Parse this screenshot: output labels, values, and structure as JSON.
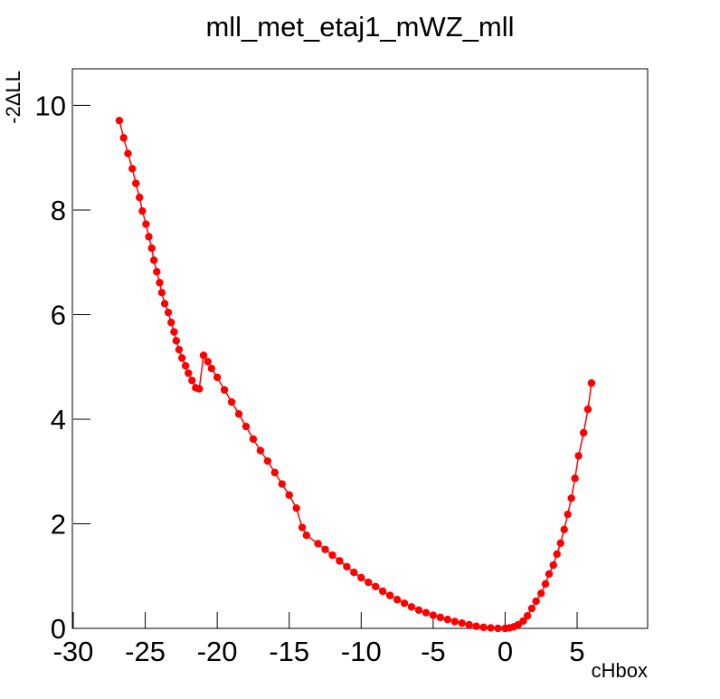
{
  "chart_data": {
    "type": "line",
    "title": "mll_met_etaj1_mWZ_mll",
    "x_label": "cHbox",
    "y_label": "-2ΔLL",
    "x": [
      -26.8,
      -26.5,
      -26.2,
      -25.9,
      -25.65,
      -25.4,
      -25.2,
      -24.95,
      -24.75,
      -24.55,
      -24.4,
      -24.2,
      -24.0,
      -23.85,
      -23.65,
      -23.4,
      -23.2,
      -23.0,
      -22.85,
      -22.65,
      -22.45,
      -22.2,
      -22.0,
      -21.75,
      -21.5,
      -21.25,
      -20.95,
      -20.65,
      -20.4,
      -20.0,
      -19.5,
      -19.0,
      -18.5,
      -18.0,
      -17.5,
      -17.0,
      -16.5,
      -16.0,
      -15.5,
      -15.0,
      -14.5,
      -14.1,
      -13.8,
      -13.0,
      -12.5,
      -12.0,
      -11.5,
      -11.0,
      -10.5,
      -10.0,
      -9.5,
      -9.0,
      -8.5,
      -8.0,
      -7.5,
      -7.0,
      -6.5,
      -6.0,
      -5.5,
      -5.0,
      -4.5,
      -4.0,
      -3.5,
      -3.0,
      -2.5,
      -2.0,
      -1.5,
      -1.0,
      -0.5,
      0.0,
      0.3,
      0.6,
      0.9,
      1.25,
      1.55,
      1.85,
      2.15,
      2.5,
      2.8,
      3.05,
      3.35,
      3.6,
      3.85,
      4.1,
      4.35,
      4.6,
      4.85,
      5.1,
      5.45,
      5.75,
      6.0
    ],
    "series": [
      {
        "name": "-2ΔLL",
        "color": "#ff0000",
        "values": [
          9.71,
          9.38,
          9.08,
          8.79,
          8.51,
          8.24,
          7.98,
          7.73,
          7.49,
          7.27,
          7.04,
          6.82,
          6.61,
          6.42,
          6.21,
          6.04,
          5.85,
          5.67,
          5.5,
          5.33,
          5.17,
          5.02,
          4.88,
          4.74,
          4.6,
          4.58,
          5.22,
          5.1,
          4.97,
          4.8,
          4.56,
          4.33,
          4.1,
          3.86,
          3.62,
          3.4,
          3.2,
          2.98,
          2.76,
          2.55,
          2.3,
          1.93,
          1.78,
          1.62,
          1.51,
          1.4,
          1.29,
          1.18,
          1.07,
          0.97,
          0.88,
          0.8,
          0.71,
          0.63,
          0.55,
          0.48,
          0.41,
          0.35,
          0.3,
          0.25,
          0.21,
          0.17,
          0.13,
          0.1,
          0.07,
          0.04,
          0.02,
          0.01,
          0.0,
          0.0,
          0.01,
          0.03,
          0.07,
          0.14,
          0.24,
          0.38,
          0.52,
          0.67,
          0.85,
          1.04,
          1.21,
          1.42,
          1.63,
          1.89,
          2.18,
          2.49,
          2.87,
          3.3,
          3.74,
          4.19,
          4.69
        ]
      }
    ],
    "xlim": [
      -30,
      10
    ],
    "ylim": [
      0,
      10.7
    ],
    "xticks": [
      -30,
      -25,
      -20,
      -15,
      -10,
      -5,
      0,
      5
    ],
    "yticks": [
      0,
      2,
      4,
      6,
      8,
      10
    ],
    "grid": false
  }
}
